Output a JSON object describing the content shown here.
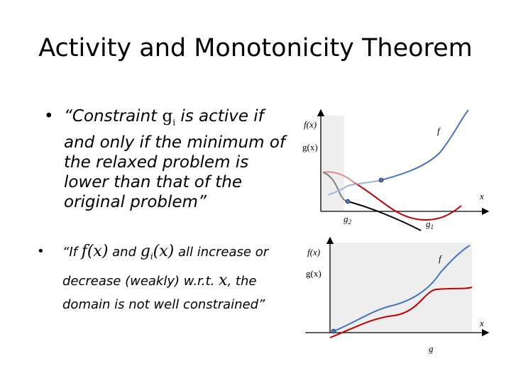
{
  "title": "Activity and Monotonicity Theorem",
  "bullet1": {
    "bullet": "•",
    "open": "“Constraint ",
    "g": "g",
    "sub": "i",
    "rest1": " is active if",
    "line2": "and only if the minimum of",
    "line3": "the relaxed problem is",
    "line4": "lower than that of the",
    "line5": "original problem”"
  },
  "bullet2": {
    "bullet": "•",
    "open": "“If ",
    "f": "f(x)",
    "and": " and ",
    "g": "g",
    "sub": "i",
    "gx": "(x)",
    "rest1": " all increase or",
    "line2a": "decrease (weakly) w.r.t. ",
    "x": "x",
    "line2b": ", the",
    "line3": "domain is not well constrained”"
  },
  "diagram1": {
    "f_axis": "f(x)",
    "g_axis": "g(x)",
    "f_curve": "f",
    "x_axis": "x",
    "g2": "g",
    "g2_sub": "2",
    "g1": "g",
    "g1_sub": "1",
    "colors": {
      "f": "#4472c4",
      "g1": "#c00000",
      "g2": "#000000",
      "f_faded": "#9fb4df",
      "g1_faded": "#e08a8a",
      "g2_faded": "#808080",
      "shade": "#eeeeee"
    }
  },
  "diagram2": {
    "f_axis": "f(x)",
    "g_axis": "g(x)",
    "f_curve": "f",
    "x_axis": "x",
    "g_curve": "g",
    "colors": {
      "f": "#4472c4",
      "g": "#c00000",
      "shade": "#eeeeee"
    }
  }
}
